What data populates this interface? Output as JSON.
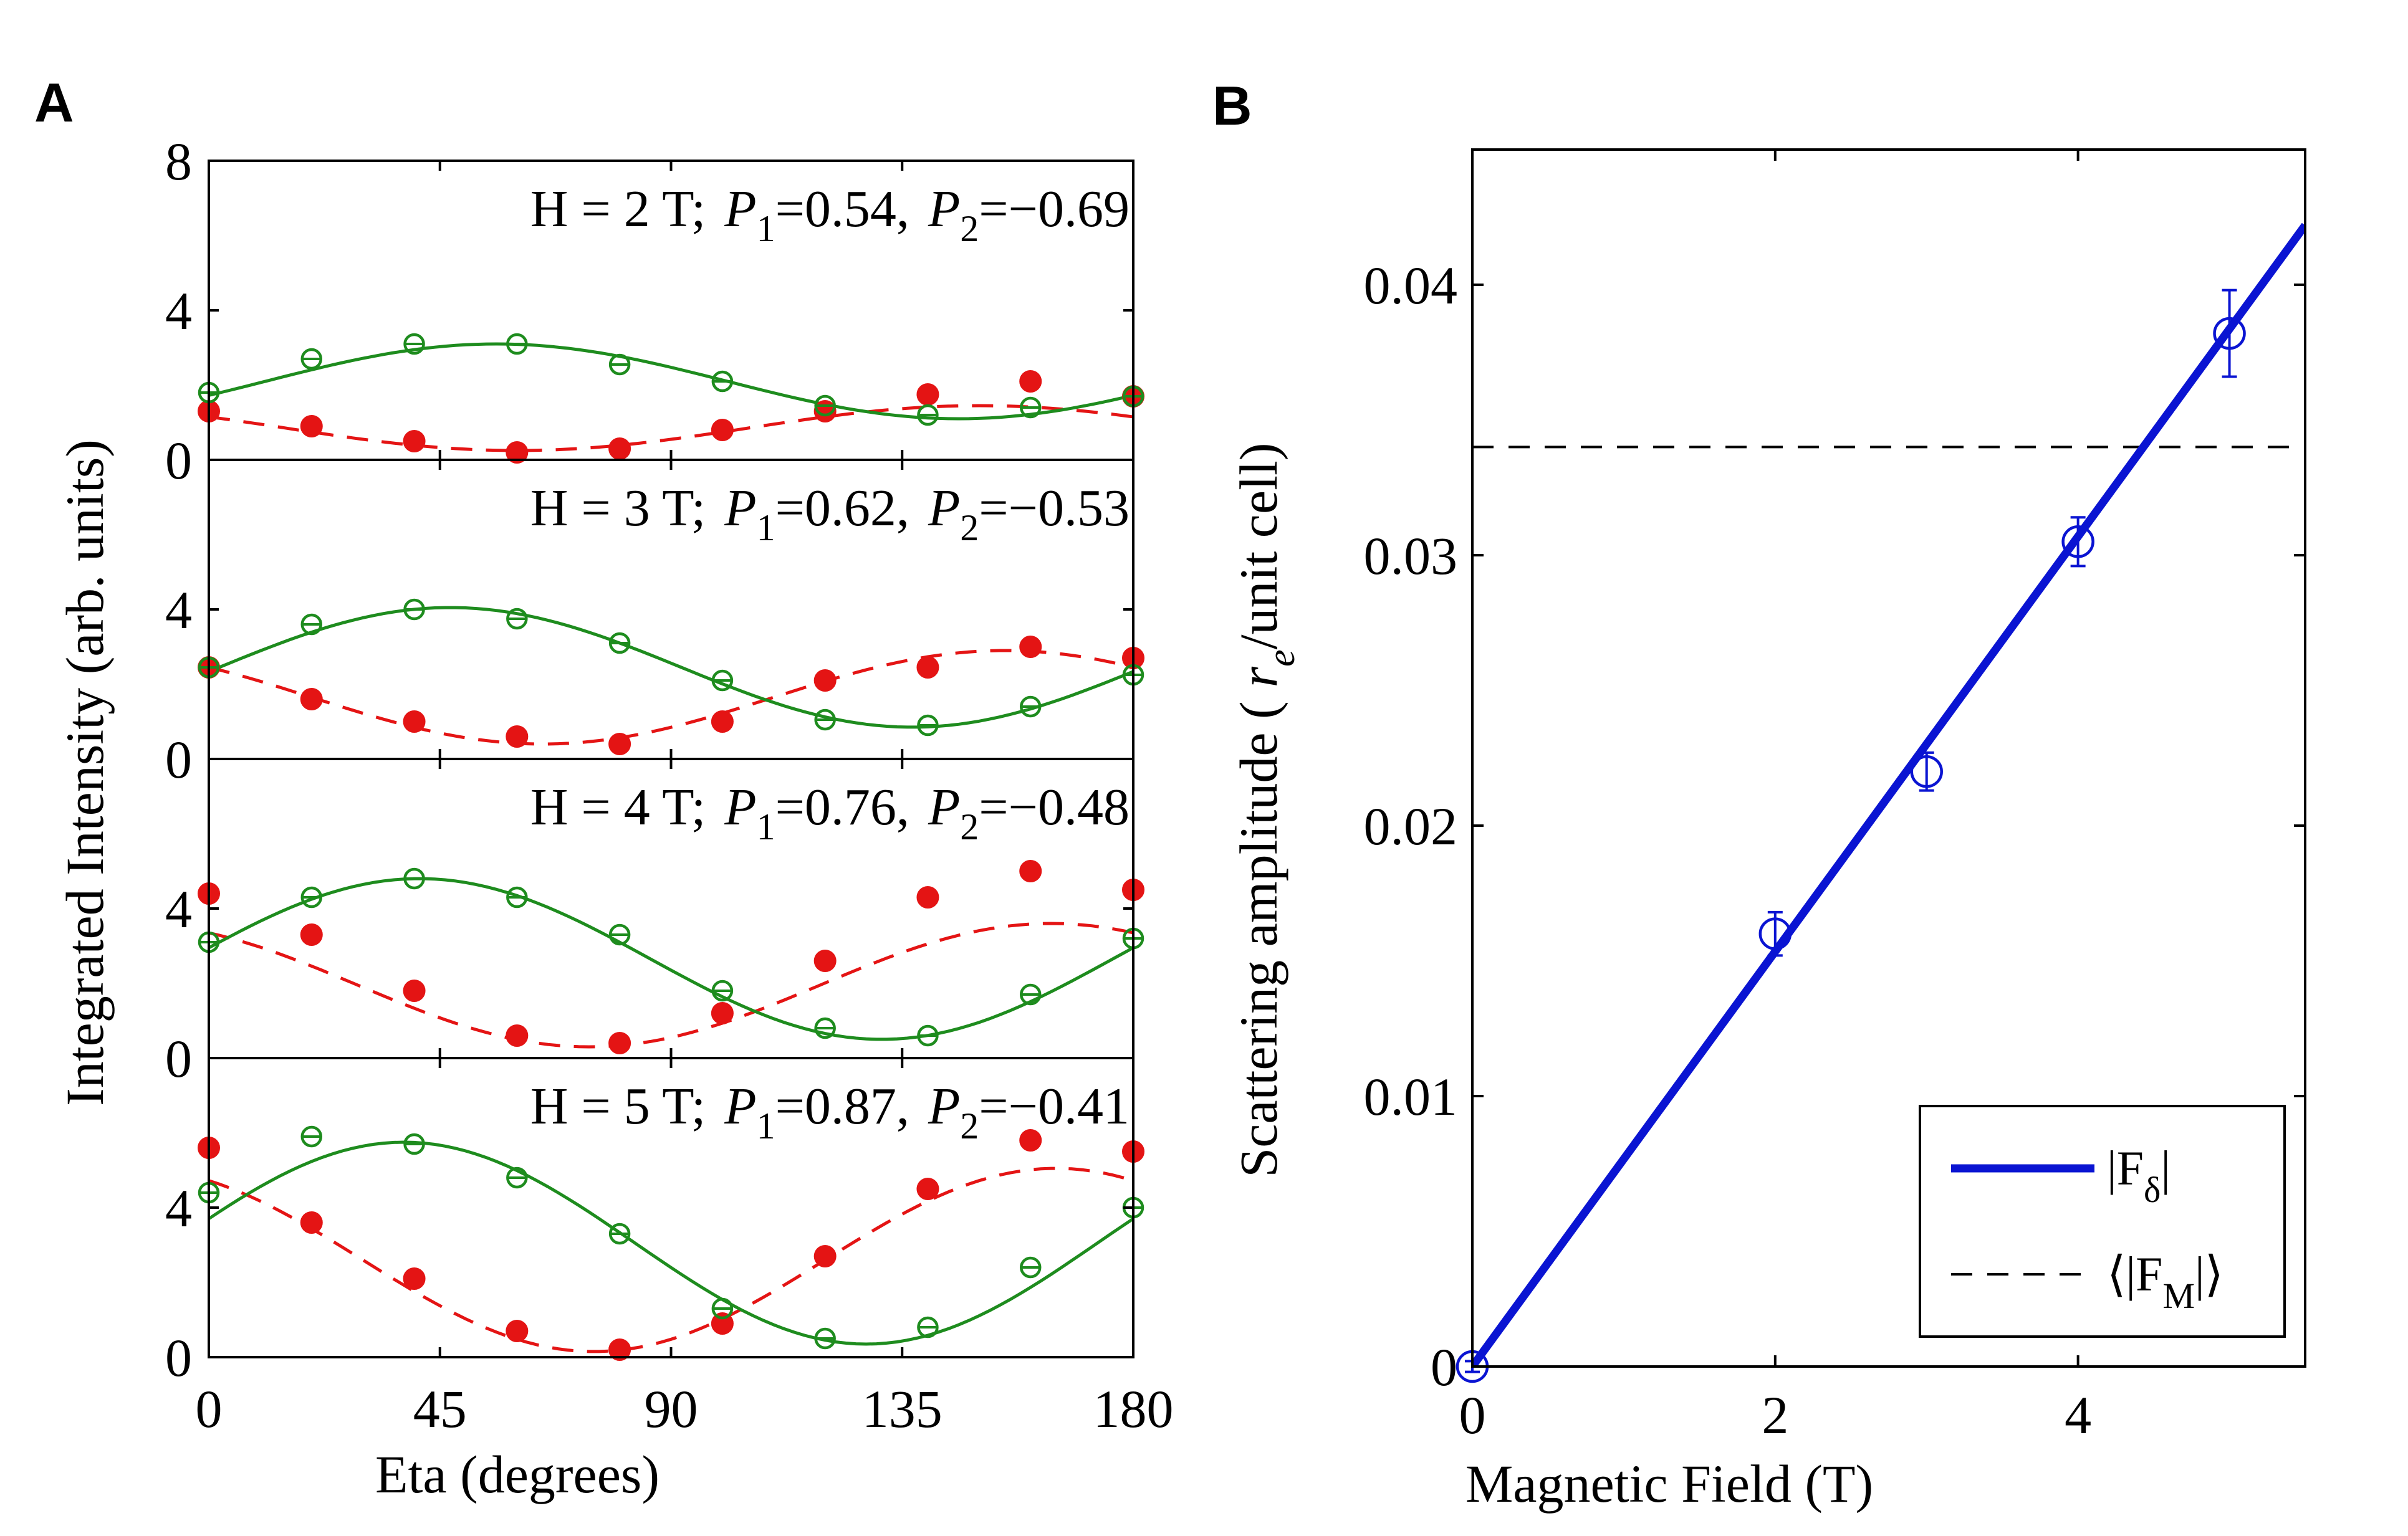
{
  "chart_data": [
    {
      "panel_label": "A",
      "type": "line",
      "xlabel": "Eta (degrees)",
      "ylabel": "Integrated Intensity (arb. units)",
      "xlim": [
        0,
        180
      ],
      "xticks": [
        "0",
        "45",
        "90",
        "135",
        "180"
      ],
      "ylim": [
        0,
        8
      ],
      "yticks": [
        "0",
        "4",
        "8"
      ],
      "subplots": [
        {
          "field": "H = 2 T;",
          "p1_name": "P",
          "p1_sub": "1",
          "p1_val": "=0.54,",
          "p2_name": "P",
          "p2_sub": "2",
          "p2_val": "=−0.69",
          "green_fit": {
            "offset": 2.1,
            "amp": 1.0,
            "phase_deg": 56
          },
          "red_fit": {
            "offset": 0.85,
            "amp": 0.6,
            "phase_deg": 150
          },
          "green_points": [
            [
              0,
              1.8
            ],
            [
              20,
              2.7
            ],
            [
              40,
              3.1
            ],
            [
              60,
              3.1
            ],
            [
              80,
              2.55
            ],
            [
              100,
              2.1
            ],
            [
              120,
              1.45
            ],
            [
              140,
              1.2
            ],
            [
              160,
              1.4
            ],
            [
              180,
              1.7
            ]
          ],
          "red_points": [
            [
              0,
              1.3
            ],
            [
              20,
              0.9
            ],
            [
              40,
              0.5
            ],
            [
              60,
              0.2
            ],
            [
              80,
              0.3
            ],
            [
              100,
              0.8
            ],
            [
              120,
              1.3
            ],
            [
              140,
              1.75
            ],
            [
              160,
              2.1
            ],
            [
              180,
              1.7
            ]
          ]
        },
        {
          "field": "H = 3 T;",
          "p1_name": "P",
          "p1_sub": "1",
          "p1_val": "=0.62,",
          "p2_name": "P",
          "p2_sub": "2",
          "p2_val": "=−0.53",
          "green_fit": {
            "offset": 2.45,
            "amp": 1.6,
            "phase_deg": 47
          },
          "red_fit": {
            "offset": 1.65,
            "amp": 1.25,
            "phase_deg": 155
          },
          "green_points": [
            [
              0,
              2.45
            ],
            [
              20,
              3.6
            ],
            [
              40,
              4.0
            ],
            [
              60,
              3.75
            ],
            [
              80,
              3.1
            ],
            [
              100,
              2.1
            ],
            [
              120,
              1.05
            ],
            [
              140,
              0.9
            ],
            [
              160,
              1.4
            ],
            [
              180,
              2.25
            ]
          ],
          "red_points": [
            [
              0,
              2.45
            ],
            [
              20,
              1.6
            ],
            [
              40,
              1.0
            ],
            [
              60,
              0.6
            ],
            [
              80,
              0.4
            ],
            [
              100,
              1.0
            ],
            [
              120,
              2.1
            ],
            [
              140,
              2.45
            ],
            [
              160,
              3.0
            ],
            [
              180,
              2.7
            ]
          ]
        },
        {
          "field": "H = 4 T;",
          "p1_name": "P",
          "p1_sub": "1",
          "p1_val": "=0.76,",
          "p2_name": "P",
          "p2_sub": "2",
          "p2_val": "=−0.48",
          "green_fit": {
            "offset": 2.65,
            "amp": 2.15,
            "phase_deg": 41
          },
          "red_fit": {
            "offset": 1.95,
            "amp": 1.65,
            "phase_deg": 164
          },
          "green_points": [
            [
              0,
              3.1
            ],
            [
              20,
              4.3
            ],
            [
              40,
              4.8
            ],
            [
              60,
              4.3
            ],
            [
              80,
              3.3
            ],
            [
              100,
              1.8
            ],
            [
              120,
              0.8
            ],
            [
              140,
              0.6
            ],
            [
              160,
              1.7
            ],
            [
              180,
              3.2
            ]
          ],
          "red_points": [
            [
              0,
              4.4
            ],
            [
              20,
              3.3
            ],
            [
              40,
              1.8
            ],
            [
              60,
              0.6
            ],
            [
              80,
              0.4
            ],
            [
              100,
              1.2
            ],
            [
              120,
              2.6
            ],
            [
              140,
              4.3
            ],
            [
              160,
              5.0
            ],
            [
              180,
              4.5
            ]
          ]
        },
        {
          "field": "H = 5 T;",
          "p1_name": "P",
          "p1_sub": "1",
          "p1_val": "=0.87,",
          "p2_name": "P",
          "p2_sub": "2",
          "p2_val": "=−0.41",
          "green_fit": {
            "offset": 3.05,
            "amp": 2.7,
            "phase_deg": 38
          },
          "red_fit": {
            "offset": 2.6,
            "amp": 2.45,
            "phase_deg": 165
          },
          "green_points": [
            [
              0,
              4.4
            ],
            [
              20,
              5.9
            ],
            [
              40,
              5.7
            ],
            [
              60,
              4.8
            ],
            [
              80,
              3.3
            ],
            [
              100,
              1.3
            ],
            [
              120,
              0.5
            ],
            [
              140,
              0.8
            ],
            [
              160,
              2.4
            ],
            [
              180,
              4.0
            ]
          ],
          "red_points": [
            [
              0,
              5.6
            ],
            [
              20,
              3.6
            ],
            [
              40,
              2.1
            ],
            [
              60,
              0.7
            ],
            [
              80,
              0.2
            ],
            [
              100,
              0.9
            ],
            [
              120,
              2.7
            ],
            [
              140,
              4.5
            ],
            [
              160,
              5.8
            ],
            [
              180,
              5.5
            ]
          ]
        }
      ]
    },
    {
      "panel_label": "B",
      "type": "line",
      "xlabel": "Magnetic Field (T)",
      "ylabel_main": "Scattering amplitude (",
      "ylabel_r": "r",
      "ylabel_sub": "e",
      "ylabel_rest": "/unit cell)",
      "xlim": [
        0,
        5.5
      ],
      "xticks": [
        "0",
        "2",
        "4"
      ],
      "xtick_values": [
        0,
        2,
        4
      ],
      "ylim": [
        0,
        0.045
      ],
      "yticks": [
        "0",
        "0.01",
        "0.02",
        "0.03",
        "0.04"
      ],
      "ytick_values": [
        0,
        0.01,
        0.02,
        0.03,
        0.04
      ],
      "series": [
        {
          "name": "|Fδ|",
          "name_main": "|F",
          "name_sub": "δ",
          "name_end": "|",
          "style": "solid",
          "x": [
            0,
            5.5
          ],
          "y": [
            0,
            0.0422
          ]
        },
        {
          "name": "⟨|FM|⟩",
          "name_main": "⟨|F",
          "name_sub": "M",
          "name_end": "|⟩",
          "style": "dashed",
          "x": [
            0,
            5.5
          ],
          "y": [
            0.034,
            0.034
          ]
        }
      ],
      "points": [
        {
          "x": 0,
          "y": 0.0,
          "err": 0.0002
        },
        {
          "x": 2,
          "y": 0.016,
          "err": 0.0008
        },
        {
          "x": 3,
          "y": 0.022,
          "err": 0.0007
        },
        {
          "x": 4,
          "y": 0.0305,
          "err": 0.0009
        },
        {
          "x": 5,
          "y": 0.0382,
          "err": 0.0016
        }
      ],
      "legend_position": "bottom-right"
    }
  ],
  "colors": {
    "green": "#1e8c1e",
    "red": "#e41414",
    "blue": "#0a14d2",
    "axis": "#000000"
  }
}
